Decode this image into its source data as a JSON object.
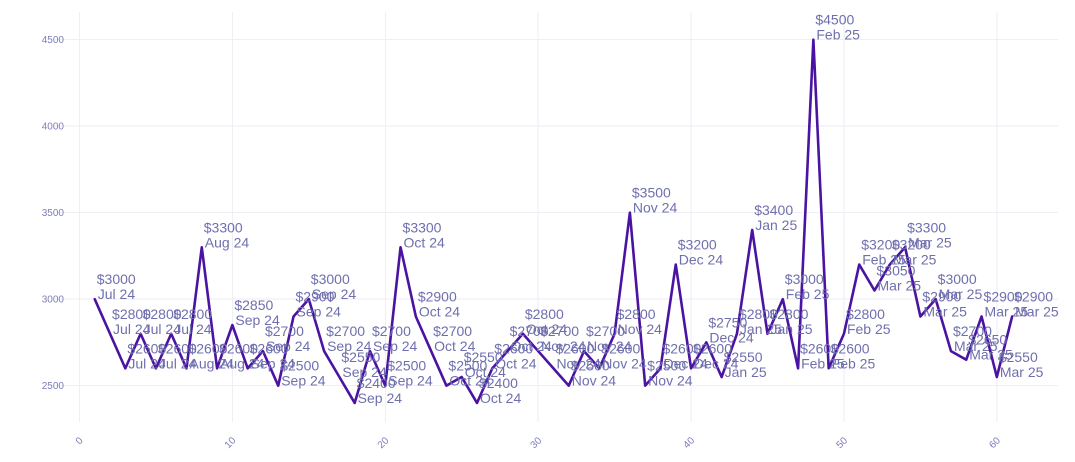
{
  "chart_data": {
    "type": "line",
    "x": [
      1,
      2,
      3,
      4,
      5,
      6,
      7,
      8,
      9,
      10,
      11,
      12,
      13,
      14,
      15,
      16,
      17,
      18,
      19,
      20,
      21,
      22,
      23,
      24,
      25,
      26,
      27,
      28,
      29,
      30,
      31,
      32,
      33,
      34,
      35,
      36,
      37,
      38,
      39,
      40,
      41,
      42,
      43,
      44,
      45,
      46,
      47,
      48,
      49,
      50,
      51,
      52,
      53,
      54,
      55,
      56,
      57,
      58,
      59,
      60,
      61
    ],
    "series": [
      {
        "values": [
          3000,
          2800,
          2600,
          2800,
          2600,
          2800,
          2600,
          3300,
          2600,
          2850,
          2600,
          2700,
          2500,
          2900,
          3000,
          2700,
          2550,
          2400,
          2700,
          2500,
          3300,
          2900,
          2700,
          2500,
          2550,
          2400,
          2600,
          2700,
          2800,
          2700,
          2600,
          2500,
          2700,
          2600,
          2800,
          3500,
          2500,
          2600,
          3200,
          2600,
          2750,
          2550,
          2800,
          3400,
          2800,
          3000,
          2600,
          4500,
          2600,
          2800,
          3200,
          3050,
          3200,
          3300,
          2900,
          3000,
          2700,
          2650,
          2900,
          2550,
          2900
        ]
      }
    ],
    "point_labels": [
      {
        "price": "$3000",
        "date": "Jul 24"
      },
      {
        "price": "$2800",
        "date": "Jul 24"
      },
      {
        "price": "$2600",
        "date": "Jul 24"
      },
      {
        "price": "$2800",
        "date": "Jul 24"
      },
      {
        "price": "$2600",
        "date": "Jul 24"
      },
      {
        "price": "$2800",
        "date": "Jul 24"
      },
      {
        "price": "$2600",
        "date": "Aug 24"
      },
      {
        "price": "$3300",
        "date": "Aug 24"
      },
      {
        "price": "$2600",
        "date": "Aug 24"
      },
      {
        "price": "$2850",
        "date": "Sep 24"
      },
      {
        "price": "$2600",
        "date": "Sep 24"
      },
      {
        "price": "$2700",
        "date": "Sep 24"
      },
      {
        "price": "$2500",
        "date": "Sep 24"
      },
      {
        "price": "$2900",
        "date": "Sep 24"
      },
      {
        "price": "$3000",
        "date": "Sep 24"
      },
      {
        "price": "$2700",
        "date": "Sep 24"
      },
      {
        "price": "$2550",
        "date": "Sep 24"
      },
      {
        "price": "$2400",
        "date": "Sep 24"
      },
      {
        "price": "$2700",
        "date": "Sep 24"
      },
      {
        "price": "$2500",
        "date": "Sep 24"
      },
      {
        "price": "$3300",
        "date": "Oct 24"
      },
      {
        "price": "$2900",
        "date": "Oct 24"
      },
      {
        "price": "$2700",
        "date": "Oct 24"
      },
      {
        "price": "$2500",
        "date": "Oct 24"
      },
      {
        "price": "$2550",
        "date": "Oct 24"
      },
      {
        "price": "$2400",
        "date": "Oct 24"
      },
      {
        "price": "$2600",
        "date": "Oct 24"
      },
      {
        "price": "$2700",
        "date": "Oct 24"
      },
      {
        "price": "$2800",
        "date": "Oct 24"
      },
      {
        "price": "$2700",
        "date": "Nov 24"
      },
      {
        "price": "$2600",
        "date": "Nov 24"
      },
      {
        "price": "$2500",
        "date": "Nov 24"
      },
      {
        "price": "$2700",
        "date": "Nov 24"
      },
      {
        "price": "$2600",
        "date": "Nov 24"
      },
      {
        "price": "$2800",
        "date": "Nov 24"
      },
      {
        "price": "$3500",
        "date": "Nov 24"
      },
      {
        "price": "$2500",
        "date": "Nov 24"
      },
      {
        "price": "$2600",
        "date": "Dec 24"
      },
      {
        "price": "$3200",
        "date": "Dec 24"
      },
      {
        "price": "$2600",
        "date": "Dec 24"
      },
      {
        "price": "$2750",
        "date": "Dec 24"
      },
      {
        "price": "$2550",
        "date": "Jan 25"
      },
      {
        "price": "$2800",
        "date": "Jan 25"
      },
      {
        "price": "$3400",
        "date": "Jan 25"
      },
      {
        "price": "$2800",
        "date": "Jan 25"
      },
      {
        "price": "$3000",
        "date": "Feb 25"
      },
      {
        "price": "$2600",
        "date": "Feb 25"
      },
      {
        "price": "$4500",
        "date": "Feb 25"
      },
      {
        "price": "$2600",
        "date": "Feb 25"
      },
      {
        "price": "$2800",
        "date": "Feb 25"
      },
      {
        "price": "$3200",
        "date": "Feb 25"
      },
      {
        "price": "$3050",
        "date": "Mar 25"
      },
      {
        "price": "$3200",
        "date": "Mar 25"
      },
      {
        "price": "$3300",
        "date": "Mar 25"
      },
      {
        "price": "$2900",
        "date": "Mar 25"
      },
      {
        "price": "$3000",
        "date": "Mar 25"
      },
      {
        "price": "$2700",
        "date": "Mar 25"
      },
      {
        "price": "$2650",
        "date": "Mar 25"
      },
      {
        "price": "$2900",
        "date": "Mar 25"
      },
      {
        "price": "$2550",
        "date": "Mar 25"
      },
      {
        "price": "$2900",
        "date": "Mar 25"
      }
    ],
    "xticks": [
      0,
      10,
      20,
      30,
      40,
      50,
      60
    ],
    "yticks": [
      2500,
      3000,
      3500,
      4000,
      4500
    ],
    "xlim": [
      -1.6,
      64
    ],
    "ylim": [
      2290,
      4660
    ],
    "grid": true,
    "colors": {
      "line": "#4a13a1",
      "label": "#6f6fae",
      "tick": "#7d7dba",
      "grid": "#eeeef5"
    }
  }
}
